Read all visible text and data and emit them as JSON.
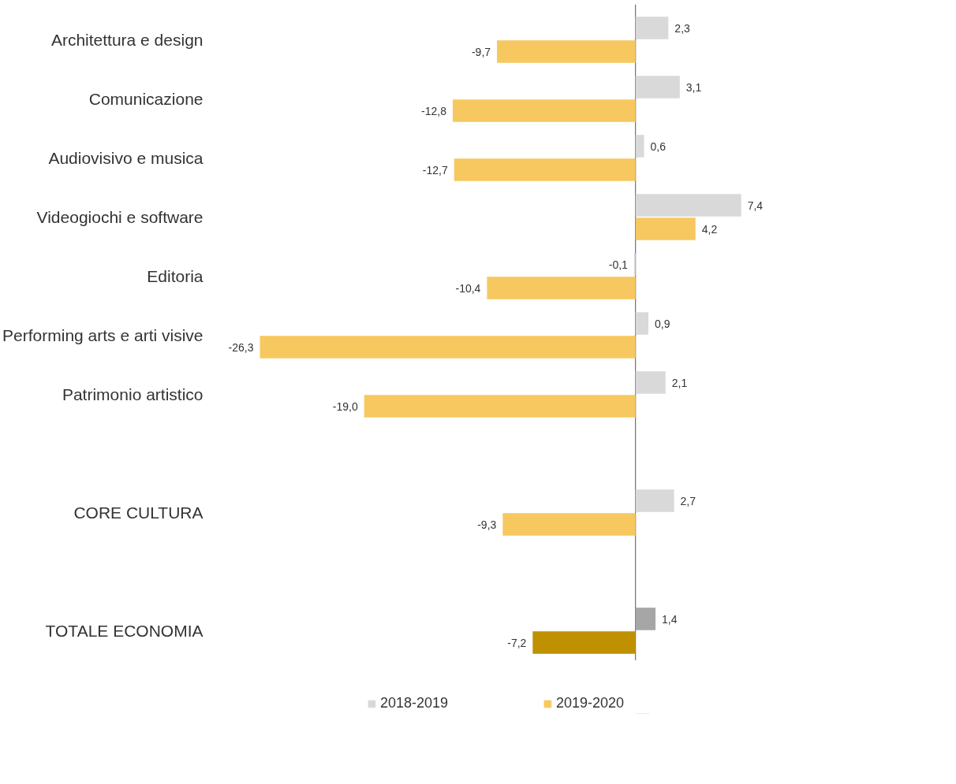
{
  "chart_data": {
    "type": "bar",
    "orientation": "horizontal",
    "categories": [
      "Architettura e design",
      "Comunicazione",
      "Audiovisivo e musica",
      "Videogiochi e software",
      "Editoria",
      "Performing arts e arti visive",
      "Patrimonio artistico",
      null,
      "CORE CULTURA",
      null,
      "TOTALE ECONOMIA"
    ],
    "series": [
      {
        "name": "2018-2019",
        "color": "#d9d9d9",
        "colors": [
          "#d9d9d9",
          "#d9d9d9",
          "#d9d9d9",
          "#d9d9d9",
          "#d9d9d9",
          "#d9d9d9",
          "#d9d9d9",
          null,
          "#d9d9d9",
          null,
          "#a6a6a6"
        ],
        "values": [
          2.3,
          3.1,
          0.6,
          7.4,
          -0.1,
          0.9,
          2.1,
          null,
          2.7,
          null,
          1.4
        ],
        "value_labels": [
          "2,3",
          "3,1",
          "0,6",
          "7,4",
          "-0,1",
          "0,9",
          "2,1",
          null,
          "2,7",
          null,
          "1,4"
        ]
      },
      {
        "name": "2019-2020",
        "color": "#f6c85f",
        "colors": [
          "#f6c85f",
          "#f6c85f",
          "#f6c85f",
          "#f6c85f",
          "#f6c85f",
          "#f6c85f",
          "#f6c85f",
          null,
          "#f6c85f",
          null,
          "#bf9000"
        ],
        "values": [
          -9.7,
          -12.8,
          -12.7,
          4.2,
          -10.4,
          -26.3,
          -19.0,
          null,
          -9.3,
          null,
          -7.2
        ],
        "value_labels": [
          "-9,7",
          "-12,8",
          "-12,7",
          "4,2",
          "-10,4",
          "-26,3",
          "-19,0",
          null,
          "-9,3",
          null,
          "-7,2"
        ]
      }
    ],
    "legend": "bottom",
    "grid": false
  }
}
